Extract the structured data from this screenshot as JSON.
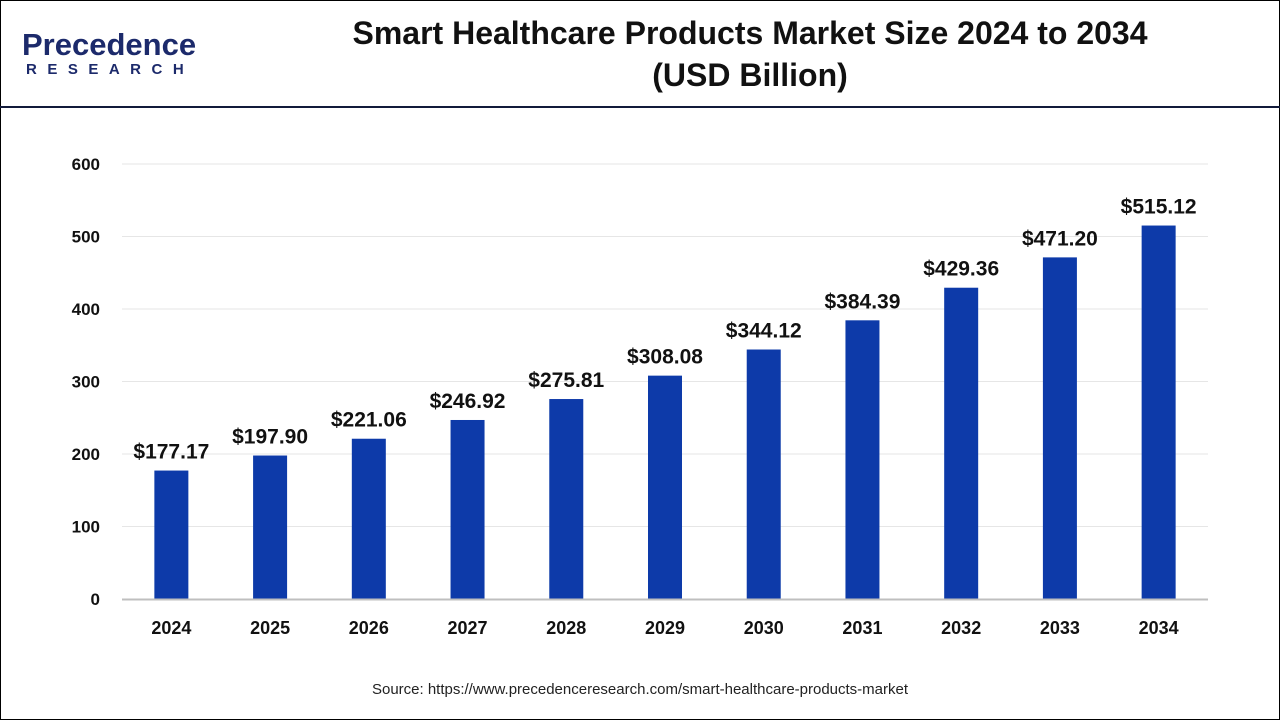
{
  "logo": {
    "line1": "Precedence",
    "line2": "RESEARCH"
  },
  "title_line1": "Smart Healthcare Products Market Size 2024 to 2034",
  "title_line2": "(USD Billion)",
  "source": "Source: https://www.precedenceresearch.com/smart-healthcare-products-market",
  "colors": {
    "bar": "#0d3aa9",
    "grid": "#e6e6e6",
    "axis": "#bfbfbf"
  },
  "chart_data": {
    "type": "bar",
    "title": "Smart Healthcare Products Market Size 2024 to 2034 (USD Billion)",
    "categories": [
      "2024",
      "2025",
      "2026",
      "2027",
      "2028",
      "2029",
      "2030",
      "2031",
      "2032",
      "2033",
      "2034"
    ],
    "values": [
      177.17,
      197.9,
      221.06,
      246.92,
      275.81,
      308.08,
      344.12,
      384.39,
      429.36,
      471.2,
      515.12
    ],
    "data_labels": [
      "$177.17",
      "$197.90",
      "$221.06",
      "$246.92",
      "$275.81",
      "$308.08",
      "$344.12",
      "$384.39",
      "$429.36",
      "$471.20",
      "$515.12"
    ],
    "xlabel": "",
    "ylabel": "",
    "ylim": [
      0,
      600
    ],
    "yticks": [
      0,
      100,
      200,
      300,
      400,
      500,
      600
    ],
    "grid": true,
    "legend": "none"
  }
}
